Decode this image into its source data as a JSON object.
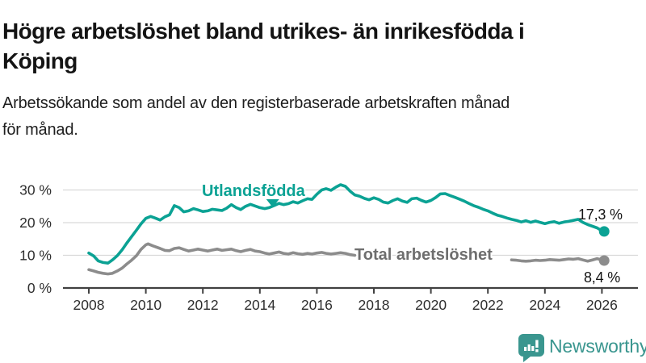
{
  "header": {
    "title": "Högre arbetslöshet bland utrikes- än inrikesfödda i Köping",
    "title_lines": [
      "Högre arbetslöshet bland utrikes- än inrikesfödda i",
      "Köping"
    ],
    "subtitle": "Arbetssökande som andel av den registerbaserade arbetskraften månad för månad.",
    "subtitle_lines": [
      "Arbetssökande som andel av den registerbaserade arbetskraften månad",
      "för månad."
    ]
  },
  "chart_data": {
    "type": "line",
    "unit": "%",
    "grid": "horizontal",
    "x_axis": {
      "ticks": [
        2008,
        2010,
        2012,
        2014,
        2016,
        2018,
        2020,
        2022,
        2024,
        2026
      ],
      "tick_labels": [
        "2008",
        "2010",
        "2012",
        "2014",
        "2016",
        "2018",
        "2020",
        "2022",
        "2024",
        "2026"
      ],
      "range": [
        2007.1,
        2027.2
      ]
    },
    "y_axis": {
      "ticks": [
        0,
        10,
        20,
        30
      ],
      "tick_labels": [
        "0 %",
        "10 %",
        "20 %",
        "30 %"
      ],
      "range": [
        0,
        33
      ]
    },
    "colors": {
      "accent_teal": "#0ba294",
      "neutral_gray": "#8c8c8c",
      "axis": "#414141",
      "gridline": "#d9d9d9"
    },
    "series": [
      {
        "name": "Utlandsfödda",
        "color": "#0ba294",
        "end_label": "17,3 %",
        "last_value": 17.3,
        "points": [
          [
            2008.0,
            10.7
          ],
          [
            2008.17,
            9.8
          ],
          [
            2008.33,
            8.3
          ],
          [
            2008.5,
            7.8
          ],
          [
            2008.67,
            7.6
          ],
          [
            2008.83,
            8.6
          ],
          [
            2009.0,
            9.9
          ],
          [
            2009.17,
            11.7
          ],
          [
            2009.33,
            13.7
          ],
          [
            2009.5,
            15.7
          ],
          [
            2009.67,
            17.7
          ],
          [
            2009.83,
            19.6
          ],
          [
            2010.0,
            21.3
          ],
          [
            2010.17,
            21.9
          ],
          [
            2010.33,
            21.4
          ],
          [
            2010.5,
            20.8
          ],
          [
            2010.67,
            21.8
          ],
          [
            2010.83,
            22.4
          ],
          [
            2011.0,
            25.2
          ],
          [
            2011.17,
            24.6
          ],
          [
            2011.33,
            23.3
          ],
          [
            2011.5,
            23.6
          ],
          [
            2011.67,
            24.3
          ],
          [
            2011.83,
            23.9
          ],
          [
            2012.0,
            23.4
          ],
          [
            2012.17,
            23.6
          ],
          [
            2012.33,
            24.1
          ],
          [
            2012.5,
            23.9
          ],
          [
            2012.67,
            23.7
          ],
          [
            2012.83,
            24.4
          ],
          [
            2013.0,
            25.5
          ],
          [
            2013.17,
            24.6
          ],
          [
            2013.33,
            24.0
          ],
          [
            2013.5,
            25.0
          ],
          [
            2013.67,
            25.6
          ],
          [
            2013.83,
            25.1
          ],
          [
            2014.0,
            24.6
          ],
          [
            2014.17,
            24.3
          ],
          [
            2014.33,
            24.6
          ],
          [
            2014.5,
            25.2
          ],
          [
            2014.67,
            25.9
          ],
          [
            2014.83,
            25.5
          ],
          [
            2015.0,
            25.8
          ],
          [
            2015.17,
            26.4
          ],
          [
            2015.33,
            26.0
          ],
          [
            2015.5,
            26.7
          ],
          [
            2015.67,
            27.3
          ],
          [
            2015.83,
            27.1
          ],
          [
            2016.0,
            28.7
          ],
          [
            2016.17,
            30.0
          ],
          [
            2016.33,
            30.4
          ],
          [
            2016.5,
            29.9
          ],
          [
            2016.67,
            30.9
          ],
          [
            2016.83,
            31.6
          ],
          [
            2017.0,
            31.1
          ],
          [
            2017.17,
            29.6
          ],
          [
            2017.33,
            28.5
          ],
          [
            2017.5,
            28.1
          ],
          [
            2017.67,
            27.4
          ],
          [
            2017.83,
            27.0
          ],
          [
            2018.0,
            27.6
          ],
          [
            2018.17,
            27.1
          ],
          [
            2018.33,
            26.3
          ],
          [
            2018.5,
            26.0
          ],
          [
            2018.67,
            26.8
          ],
          [
            2018.83,
            27.3
          ],
          [
            2019.0,
            26.6
          ],
          [
            2019.17,
            26.2
          ],
          [
            2019.33,
            27.3
          ],
          [
            2019.5,
            27.5
          ],
          [
            2019.67,
            26.8
          ],
          [
            2019.83,
            26.3
          ],
          [
            2020.0,
            26.8
          ],
          [
            2020.17,
            27.7
          ],
          [
            2020.33,
            28.8
          ],
          [
            2020.5,
            28.9
          ],
          [
            2020.67,
            28.3
          ],
          [
            2020.83,
            27.8
          ],
          [
            2021.0,
            27.2
          ],
          [
            2021.17,
            26.6
          ],
          [
            2021.33,
            25.9
          ],
          [
            2021.5,
            25.2
          ],
          [
            2021.67,
            24.7
          ],
          [
            2021.83,
            24.1
          ],
          [
            2022.0,
            23.6
          ],
          [
            2022.17,
            22.9
          ],
          [
            2022.33,
            22.3
          ],
          [
            2022.5,
            21.9
          ],
          [
            2022.67,
            21.4
          ],
          [
            2022.83,
            21.0
          ],
          [
            2023.0,
            20.7
          ],
          [
            2023.17,
            20.2
          ],
          [
            2023.33,
            20.6
          ],
          [
            2023.5,
            20.1
          ],
          [
            2023.67,
            20.5
          ],
          [
            2023.83,
            20.1
          ],
          [
            2024.0,
            19.7
          ],
          [
            2024.17,
            20.1
          ],
          [
            2024.33,
            20.3
          ],
          [
            2024.5,
            19.8
          ],
          [
            2024.67,
            20.2
          ],
          [
            2024.83,
            20.4
          ],
          [
            2025.0,
            20.7
          ],
          [
            2025.17,
            21.0
          ],
          [
            2025.33,
            20.1
          ],
          [
            2025.5,
            19.4
          ],
          [
            2025.67,
            18.9
          ],
          [
            2025.83,
            18.4
          ],
          [
            2026.0,
            17.5
          ],
          [
            2026.08,
            17.3
          ]
        ]
      },
      {
        "name": "Total arbetslöshet",
        "color": "#8c8c8c",
        "label_color": "#6e6e6e",
        "end_label": "8,4 %",
        "last_value": 8.4,
        "label_covers_line_years": [
          2017.35,
          2022.8
        ],
        "points": [
          [
            2008.0,
            5.6
          ],
          [
            2008.17,
            5.2
          ],
          [
            2008.33,
            4.8
          ],
          [
            2008.5,
            4.5
          ],
          [
            2008.67,
            4.3
          ],
          [
            2008.83,
            4.5
          ],
          [
            2009.0,
            5.2
          ],
          [
            2009.17,
            6.1
          ],
          [
            2009.33,
            7.3
          ],
          [
            2009.5,
            8.5
          ],
          [
            2009.67,
            9.9
          ],
          [
            2009.83,
            11.8
          ],
          [
            2010.0,
            13.2
          ],
          [
            2010.08,
            13.5
          ],
          [
            2010.25,
            12.9
          ],
          [
            2010.5,
            12.1
          ],
          [
            2010.67,
            11.5
          ],
          [
            2010.83,
            11.4
          ],
          [
            2011.0,
            12.1
          ],
          [
            2011.17,
            12.3
          ],
          [
            2011.33,
            11.8
          ],
          [
            2011.5,
            11.3
          ],
          [
            2011.67,
            11.6
          ],
          [
            2011.83,
            11.9
          ],
          [
            2012.0,
            11.6
          ],
          [
            2012.17,
            11.3
          ],
          [
            2012.33,
            11.6
          ],
          [
            2012.5,
            11.9
          ],
          [
            2012.67,
            11.5
          ],
          [
            2012.83,
            11.7
          ],
          [
            2013.0,
            11.9
          ],
          [
            2013.17,
            11.4
          ],
          [
            2013.33,
            11.1
          ],
          [
            2013.5,
            11.5
          ],
          [
            2013.67,
            11.8
          ],
          [
            2013.83,
            11.3
          ],
          [
            2014.0,
            11.1
          ],
          [
            2014.17,
            10.7
          ],
          [
            2014.33,
            10.4
          ],
          [
            2014.5,
            10.7
          ],
          [
            2014.67,
            11.0
          ],
          [
            2014.83,
            10.6
          ],
          [
            2015.0,
            10.4
          ],
          [
            2015.17,
            10.8
          ],
          [
            2015.33,
            10.5
          ],
          [
            2015.5,
            10.3
          ],
          [
            2015.67,
            10.6
          ],
          [
            2015.83,
            10.4
          ],
          [
            2016.0,
            10.7
          ],
          [
            2016.17,
            10.9
          ],
          [
            2016.33,
            10.6
          ],
          [
            2016.5,
            10.4
          ],
          [
            2016.67,
            10.6
          ],
          [
            2016.83,
            10.8
          ],
          [
            2017.0,
            10.6
          ],
          [
            2017.17,
            10.2
          ],
          [
            2017.33,
            10.0
          ],
          [
            2017.5,
            9.8
          ],
          [
            2017.67,
            9.6
          ],
          [
            2017.83,
            9.5
          ],
          [
            2018.0,
            9.6
          ],
          [
            2018.33,
            9.4
          ],
          [
            2018.67,
            9.4
          ],
          [
            2019.0,
            9.5
          ],
          [
            2019.33,
            9.3
          ],
          [
            2019.67,
            9.3
          ],
          [
            2020.0,
            9.6
          ],
          [
            2020.17,
            10.1
          ],
          [
            2020.33,
            10.6
          ],
          [
            2020.5,
            10.6
          ],
          [
            2020.67,
            10.4
          ],
          [
            2021.0,
            10.1
          ],
          [
            2021.33,
            9.8
          ],
          [
            2021.67,
            9.5
          ],
          [
            2022.0,
            9.2
          ],
          [
            2022.33,
            9.0
          ],
          [
            2022.67,
            8.8
          ],
          [
            2022.83,
            8.6
          ],
          [
            2023.0,
            8.5
          ],
          [
            2023.17,
            8.3
          ],
          [
            2023.33,
            8.2
          ],
          [
            2023.5,
            8.3
          ],
          [
            2023.67,
            8.5
          ],
          [
            2023.83,
            8.4
          ],
          [
            2024.0,
            8.5
          ],
          [
            2024.17,
            8.7
          ],
          [
            2024.33,
            8.6
          ],
          [
            2024.5,
            8.5
          ],
          [
            2024.67,
            8.7
          ],
          [
            2024.83,
            8.9
          ],
          [
            2025.0,
            8.8
          ],
          [
            2025.17,
            9.0
          ],
          [
            2025.33,
            8.6
          ],
          [
            2025.5,
            8.2
          ],
          [
            2025.67,
            8.6
          ],
          [
            2025.83,
            9.0
          ],
          [
            2026.0,
            8.6
          ],
          [
            2026.08,
            8.4
          ]
        ]
      }
    ],
    "annotations": [
      {
        "type": "pointer-triangle",
        "series": "Utlandsfödda",
        "year": 2014.45,
        "value": 24.7
      }
    ]
  },
  "footer": {
    "brand": "Newsworthy",
    "brand_color": "#3a968f",
    "logo_icon": "newsworthy-chart-bubble-icon"
  }
}
